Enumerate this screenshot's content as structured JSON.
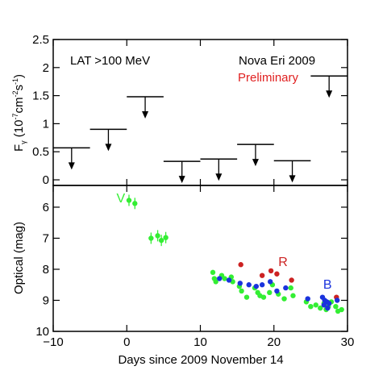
{
  "chart_data": [
    {
      "type": "scatter",
      "panel": "top",
      "ylabel": "F",
      "ylabel_sub": "γ",
      "ylabel_unit_prefix": " (10",
      "ylabel_exp1": "-7",
      "ylabel_mid": "cm",
      "ylabel_exp2": "-2",
      "ylabel_s": "s",
      "ylabel_exp3": "-1",
      "ylabel_close": ")",
      "xlim": [
        -10,
        30
      ],
      "ylim": [
        -0.1,
        2.5
      ],
      "yticks": [
        "0",
        "0.5",
        "1",
        "1.5",
        "2",
        "2.5"
      ],
      "annotations": {
        "band": "LAT >100 MeV",
        "object": "Nova Eri 2009",
        "status": "Preliminary"
      },
      "upper_limits": [
        {
          "x_start": -10,
          "x_end": -5,
          "y": 0.57
        },
        {
          "x_start": -5,
          "x_end": 0,
          "y": 0.9
        },
        {
          "x_start": 0,
          "x_end": 5,
          "y": 1.48
        },
        {
          "x_start": 5,
          "x_end": 10,
          "y": 0.33
        },
        {
          "x_start": 10,
          "x_end": 15,
          "y": 0.37
        },
        {
          "x_start": 15,
          "x_end": 20,
          "y": 0.63
        },
        {
          "x_start": 20,
          "x_end": 25,
          "y": 0.34
        },
        {
          "x_start": 25,
          "x_end": 30,
          "y": 1.85
        }
      ],
      "colors": {
        "status": "#e02020",
        "limit": "#000000"
      }
    },
    {
      "type": "scatter",
      "panel": "bottom",
      "xlabel": "Days since 2009 November 14",
      "ylabel": "Optical (mag)",
      "xlim": [
        -10,
        30
      ],
      "ylim": [
        10,
        5.3
      ],
      "y_inverted": true,
      "xticks": [
        "−10",
        "0",
        "10",
        "20",
        "30"
      ],
      "yticks": [
        "6",
        "7",
        "8",
        "9",
        "10"
      ],
      "series": [
        {
          "name": "V",
          "color": "#33ee33",
          "label_pos": {
            "x": -1.4,
            "y": 5.85
          },
          "points": [
            [
              0.3,
              5.78
            ],
            [
              1.1,
              5.88
            ],
            [
              3.3,
              7.0
            ],
            [
              4.2,
              6.92
            ],
            [
              4.7,
              7.07
            ],
            [
              5.3,
              6.98
            ],
            [
              11.7,
              8.1
            ],
            [
              11.9,
              8.3
            ],
            [
              12.1,
              8.4
            ],
            [
              12.9,
              8.2
            ],
            [
              13.3,
              8.3
            ],
            [
              14.2,
              8.25
            ],
            [
              14.4,
              8.4
            ],
            [
              15.3,
              8.55
            ],
            [
              15.6,
              8.7
            ],
            [
              16.3,
              8.9
            ],
            [
              17.4,
              8.6
            ],
            [
              17.8,
              8.75
            ],
            [
              18.1,
              8.85
            ],
            [
              18.6,
              8.9
            ],
            [
              19.4,
              8.75
            ],
            [
              19.8,
              8.5
            ],
            [
              20.6,
              8.8
            ],
            [
              21.4,
              8.95
            ],
            [
              22.3,
              8.6
            ],
            [
              22.6,
              8.85
            ],
            [
              24.4,
              9.05
            ],
            [
              25.0,
              9.2
            ],
            [
              25.7,
              9.15
            ],
            [
              26.3,
              9.25
            ],
            [
              26.8,
              9.1
            ],
            [
              27.1,
              9.3
            ],
            [
              27.4,
              9.2
            ],
            [
              27.8,
              9.05
            ],
            [
              28.4,
              9.2
            ],
            [
              28.7,
              9.35
            ],
            [
              29.2,
              9.3
            ]
          ]
        },
        {
          "name": "R",
          "color": "#cc2222",
          "label_pos": {
            "x": 20.6,
            "y": 7.9
          },
          "points": [
            [
              15.5,
              7.85
            ],
            [
              18.4,
              8.2
            ],
            [
              19.6,
              8.05
            ],
            [
              20.4,
              8.15
            ],
            [
              22.4,
              8.35
            ],
            [
              28.5,
              8.9
            ]
          ]
        },
        {
          "name": "B",
          "color": "#1a33dd",
          "label_pos": {
            "x": 26.7,
            "y": 8.62
          },
          "points": [
            [
              12.6,
              8.3
            ],
            [
              13.9,
              8.35
            ],
            [
              15.4,
              8.45
            ],
            [
              16.6,
              8.5
            ],
            [
              17.6,
              8.55
            ],
            [
              18.4,
              8.5
            ],
            [
              19.5,
              8.4
            ],
            [
              20.4,
              8.7
            ],
            [
              21.6,
              8.6
            ],
            [
              24.6,
              8.95
            ],
            [
              26.6,
              8.9
            ],
            [
              26.9,
              9.0
            ],
            [
              27.2,
              9.05
            ],
            [
              27.5,
              9.1
            ],
            [
              27.3,
              9.25
            ],
            [
              26.8,
              9.15
            ],
            [
              28.6,
              9.0
            ]
          ]
        }
      ]
    }
  ]
}
